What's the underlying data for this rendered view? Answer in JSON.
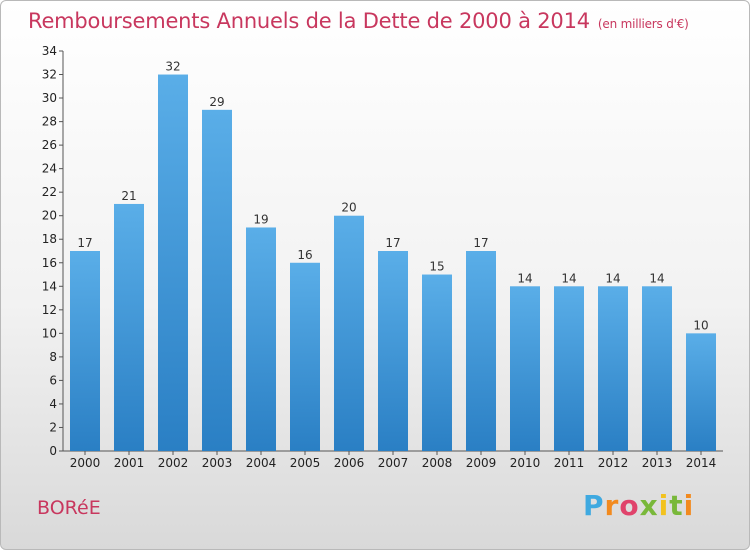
{
  "header": {
    "title": "Remboursements Annuels de la Dette de 2000 à 2014",
    "unit": "(en milliers d'€)"
  },
  "footer": {
    "commune": "BORéE",
    "logo_letters": [
      "P",
      "r",
      "o",
      "x",
      "i",
      "t",
      "i"
    ]
  },
  "chart_data": {
    "type": "bar",
    "title": "Remboursements Annuels de la Dette de 2000 à 2014",
    "subtitle": "(en milliers d'€)",
    "xlabel": "",
    "ylabel": "",
    "categories": [
      "2000",
      "2001",
      "2002",
      "2003",
      "2004",
      "2005",
      "2006",
      "2007",
      "2008",
      "2009",
      "2010",
      "2011",
      "2012",
      "2013",
      "2014"
    ],
    "values": [
      17,
      21,
      32,
      29,
      19,
      16,
      20,
      17,
      15,
      17,
      14,
      14,
      14,
      14,
      10
    ],
    "ylim": [
      0,
      34
    ],
    "yticks": [
      0,
      2,
      4,
      6,
      8,
      10,
      12,
      14,
      16,
      18,
      20,
      22,
      24,
      26,
      28,
      30,
      32,
      34
    ],
    "grid": false,
    "legend": "none",
    "bar_color_top": "#5aaee8",
    "bar_color_bottom": "#2a7fc4"
  }
}
